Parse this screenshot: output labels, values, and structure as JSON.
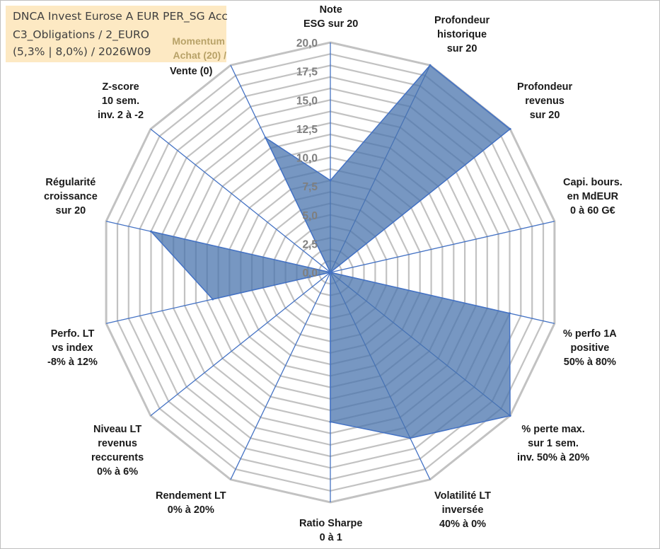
{
  "fund": {
    "line1": "DNCA Invest Eurose A EUR PER_SG Acc",
    "line2": "C3_Obligations / 2_EURO",
    "line3": "(5,3% | 8,0%) / 2026W09"
  },
  "momentum": {
    "line1": "Momentum",
    "line2": "Achat (20) /"
  },
  "chart_data": {
    "type": "radar",
    "range": [
      0,
      20
    ],
    "ticks": [
      "0,0",
      "2,5",
      "5,0",
      "7,5",
      "10,0",
      "12,5",
      "15,0",
      "17,5",
      "20,0"
    ],
    "grid": true,
    "axes": [
      {
        "label": [
          "Note",
          "ESG sur 20"
        ],
        "value": 8.0
      },
      {
        "label": [
          "Profondeur",
          "historique",
          "sur 20"
        ],
        "value": 20.0
      },
      {
        "label": [
          "Profondeur",
          "revenus",
          "sur 20"
        ],
        "value": 20.0
      },
      {
        "label": [
          "Capi. bours.",
          "en MdEUR",
          "0 à 60 G€"
        ],
        "value": 0.0
      },
      {
        "label": [
          "% perfo 1A",
          "positive",
          "50% à 80%"
        ],
        "value": 16.0
      },
      {
        "label": [
          "% perte max.",
          "sur 1 sem.",
          "inv. 50% à 20%"
        ],
        "value": 20.0
      },
      {
        "label": [
          "Volatilité LT",
          "inversée",
          "40% à 0%"
        ],
        "value": 16.0
      },
      {
        "label": [
          "Ratio Sharpe",
          "0 à 1"
        ],
        "value": 13.0
      },
      {
        "label": [
          "Rendement LT",
          "0% à 20%"
        ],
        "value": 0.0
      },
      {
        "label": [
          "Niveau LT",
          "revenus",
          "reccurents",
          "0% à 6%"
        ],
        "value": 0.0
      },
      {
        "label": [
          "Perfo. LT",
          "vs index",
          "-8% à 12%"
        ],
        "value": 10.5
      },
      {
        "label": [
          "Régularité",
          "croissance",
          "sur 20"
        ],
        "value": 16.0
      },
      {
        "label": [
          "Z-score",
          "10 sem.",
          "inv. 2 à -2"
        ],
        "value": 0.0
      },
      {
        "label": [
          "Vente (0)"
        ],
        "value": 13.0
      }
    ],
    "series": [
      {
        "values": [
          8.0,
          20.0,
          20.0,
          0.0,
          16.0,
          20.0,
          16.0,
          13.0,
          0.0,
          0.0,
          10.5,
          16.0,
          0.0,
          13.0
        ]
      }
    ],
    "colors": {
      "fill": "#4a74ad",
      "line": "#4472c4",
      "grid": "#c2c2c2",
      "spoke": "#4472c4"
    }
  }
}
